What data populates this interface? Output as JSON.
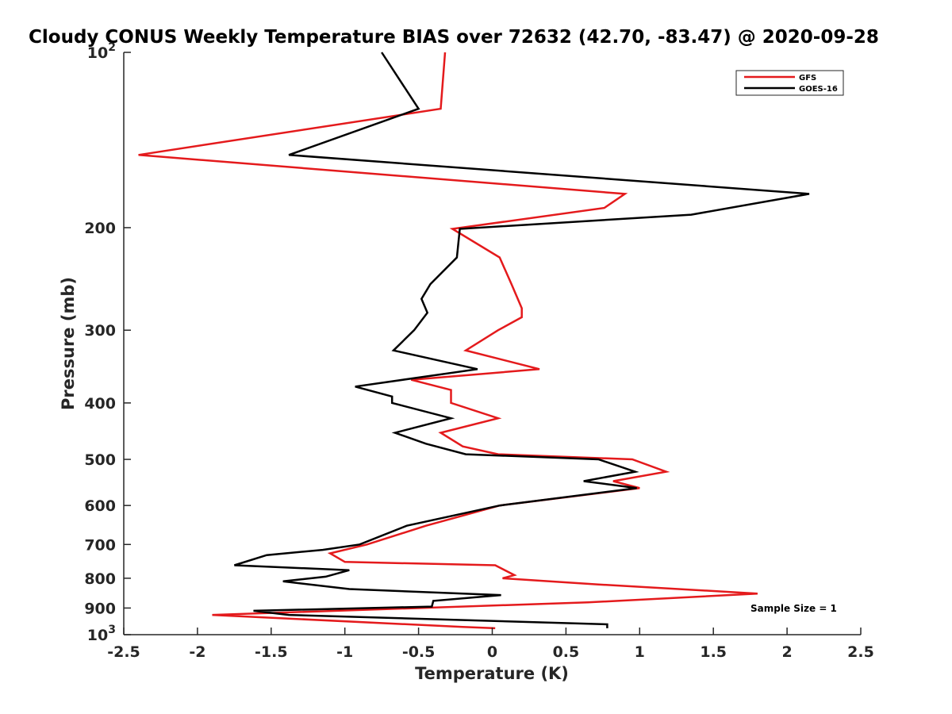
{
  "chart_data": {
    "type": "line",
    "title": "Cloudy CONUS Weekly Temperature BIAS over 72632 (42.70, -83.47) @ 2020-09-28",
    "xlabel": "Temperature (K)",
    "ylabel": "Pressure (mb)",
    "xlim": [
      -2.5,
      2.5
    ],
    "ylim": [
      100,
      1000
    ],
    "y_scale": "log",
    "y_reversed": true,
    "grid": false,
    "legend_position": "top-right",
    "x_ticks": [
      "-2.5",
      "-2",
      "-1.5",
      "-1",
      "-0.5",
      "0",
      "0.5",
      "1",
      "1.5",
      "2",
      "2.5"
    ],
    "y_ticks": [
      {
        "value": 100,
        "label": "10",
        "exponent": "2"
      },
      {
        "value": 200,
        "label": "200"
      },
      {
        "value": 300,
        "label": "300"
      },
      {
        "value": 400,
        "label": "400"
      },
      {
        "value": 500,
        "label": "500"
      },
      {
        "value": 600,
        "label": "600"
      },
      {
        "value": 700,
        "label": "700"
      },
      {
        "value": 800,
        "label": "800"
      },
      {
        "value": 900,
        "label": "900"
      },
      {
        "value": 1000,
        "label": "10",
        "exponent": "3"
      }
    ],
    "annotation": "Sample Size = 1",
    "series": [
      {
        "name": "GFS",
        "color": "#e41a1c",
        "points": [
          [
            -0.32,
            100
          ],
          [
            -0.35,
            125
          ],
          [
            -2.4,
            150
          ],
          [
            0.9,
            175
          ],
          [
            0.76,
            185
          ],
          [
            -0.27,
            201
          ],
          [
            0.05,
            225
          ],
          [
            0.13,
            250
          ],
          [
            0.2,
            275
          ],
          [
            0.2,
            285
          ],
          [
            0.04,
            300
          ],
          [
            -0.18,
            325
          ],
          [
            0.32,
            350
          ],
          [
            -0.55,
            365
          ],
          [
            -0.28,
            380
          ],
          [
            -0.28,
            400
          ],
          [
            0.04,
            425
          ],
          [
            -0.35,
            450
          ],
          [
            -0.2,
            475
          ],
          [
            0.04,
            490
          ],
          [
            0.95,
            500
          ],
          [
            1.18,
            525
          ],
          [
            0.82,
            545
          ],
          [
            1.0,
            560
          ],
          [
            0.05,
            600
          ],
          [
            -0.45,
            650
          ],
          [
            -0.85,
            700
          ],
          [
            -1.1,
            725
          ],
          [
            -1.0,
            750
          ],
          [
            0.02,
            760
          ],
          [
            0.15,
            790
          ],
          [
            0.07,
            800
          ],
          [
            0.72,
            820
          ],
          [
            1.8,
            850
          ],
          [
            0.65,
            880
          ],
          [
            -1.9,
            925
          ],
          [
            -0.2,
            970
          ],
          [
            0.02,
            975
          ]
        ]
      },
      {
        "name": "GOES-16",
        "color": "#000000",
        "points": [
          [
            -0.75,
            100
          ],
          [
            -0.5,
            125
          ],
          [
            -1.38,
            150
          ],
          [
            2.15,
            175
          ],
          [
            1.35,
            190
          ],
          [
            -0.22,
            201
          ],
          [
            -0.24,
            225
          ],
          [
            -0.42,
            250
          ],
          [
            -0.48,
            265
          ],
          [
            -0.44,
            280
          ],
          [
            -0.53,
            300
          ],
          [
            -0.67,
            325
          ],
          [
            -0.1,
            350
          ],
          [
            -0.93,
            375
          ],
          [
            -0.68,
            390
          ],
          [
            -0.68,
            400
          ],
          [
            -0.28,
            425
          ],
          [
            -0.66,
            450
          ],
          [
            -0.45,
            470
          ],
          [
            -0.18,
            490
          ],
          [
            0.72,
            500
          ],
          [
            0.97,
            525
          ],
          [
            0.62,
            545
          ],
          [
            0.98,
            560
          ],
          [
            0.05,
            600
          ],
          [
            -0.58,
            650
          ],
          [
            -0.9,
            700
          ],
          [
            -1.15,
            715
          ],
          [
            -1.53,
            730
          ],
          [
            -1.75,
            760
          ],
          [
            -0.97,
            775
          ],
          [
            -1.13,
            795
          ],
          [
            -1.42,
            810
          ],
          [
            -0.97,
            835
          ],
          [
            0.06,
            855
          ],
          [
            -0.4,
            875
          ],
          [
            -0.41,
            895
          ],
          [
            -1.62,
            910
          ],
          [
            -1.38,
            925
          ],
          [
            0.78,
            960
          ],
          [
            0.78,
            975
          ]
        ]
      }
    ]
  }
}
